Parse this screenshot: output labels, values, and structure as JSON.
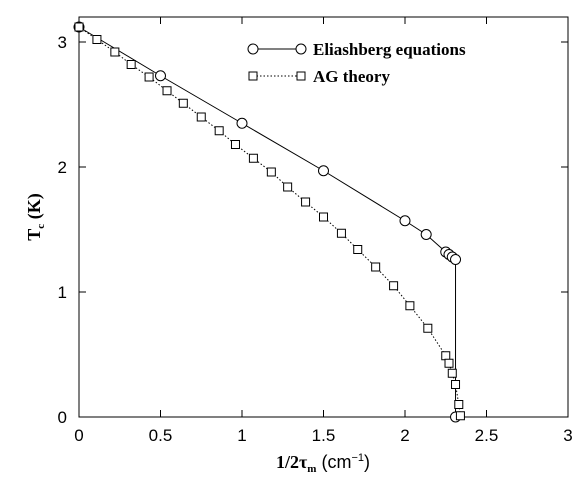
{
  "chart_data": {
    "type": "line",
    "xlabel": {
      "main": "1/2τ",
      "sub": "m",
      "unit_pre": " (cm",
      "unit_sup": "−1",
      "unit_post": ")"
    },
    "ylabel": {
      "main": "T",
      "sub": "c",
      "unit": " (K)"
    },
    "xlim": [
      0,
      3
    ],
    "ylim": [
      0,
      3.2
    ],
    "xticks": [
      "0",
      "0.5",
      "1",
      "1.5",
      "2",
      "2.5",
      "3"
    ],
    "yticks": [
      "0",
      "1",
      "2",
      "3"
    ],
    "xtick_values": [
      0,
      0.5,
      1,
      1.5,
      2,
      2.5,
      3
    ],
    "ytick_values": [
      0,
      1,
      2,
      3
    ],
    "legend_position": "top-right",
    "series": [
      {
        "name": "Eliashberg equations",
        "marker": "circle",
        "line": "solid",
        "x": [
          0,
          0.5,
          1.0,
          1.5,
          2.0,
          2.13,
          2.25,
          2.27,
          2.29,
          2.31,
          2.31
        ],
        "y": [
          3.12,
          2.73,
          2.35,
          1.97,
          1.57,
          1.46,
          1.32,
          1.3,
          1.28,
          1.26,
          0.0
        ]
      },
      {
        "name": "AG theory",
        "marker": "square",
        "line": "dotted",
        "x": [
          0,
          0.11,
          0.22,
          0.32,
          0.43,
          0.54,
          0.64,
          0.75,
          0.86,
          0.96,
          1.07,
          1.18,
          1.28,
          1.39,
          1.5,
          1.61,
          1.71,
          1.82,
          1.93,
          2.03,
          2.14,
          2.25,
          2.27,
          2.29,
          2.31,
          2.33,
          2.34
        ],
        "y": [
          3.12,
          3.02,
          2.92,
          2.82,
          2.72,
          2.61,
          2.51,
          2.4,
          2.29,
          2.18,
          2.07,
          1.96,
          1.84,
          1.72,
          1.6,
          1.47,
          1.34,
          1.2,
          1.05,
          0.89,
          0.71,
          0.49,
          0.43,
          0.35,
          0.26,
          0.1,
          0.01
        ]
      }
    ]
  }
}
